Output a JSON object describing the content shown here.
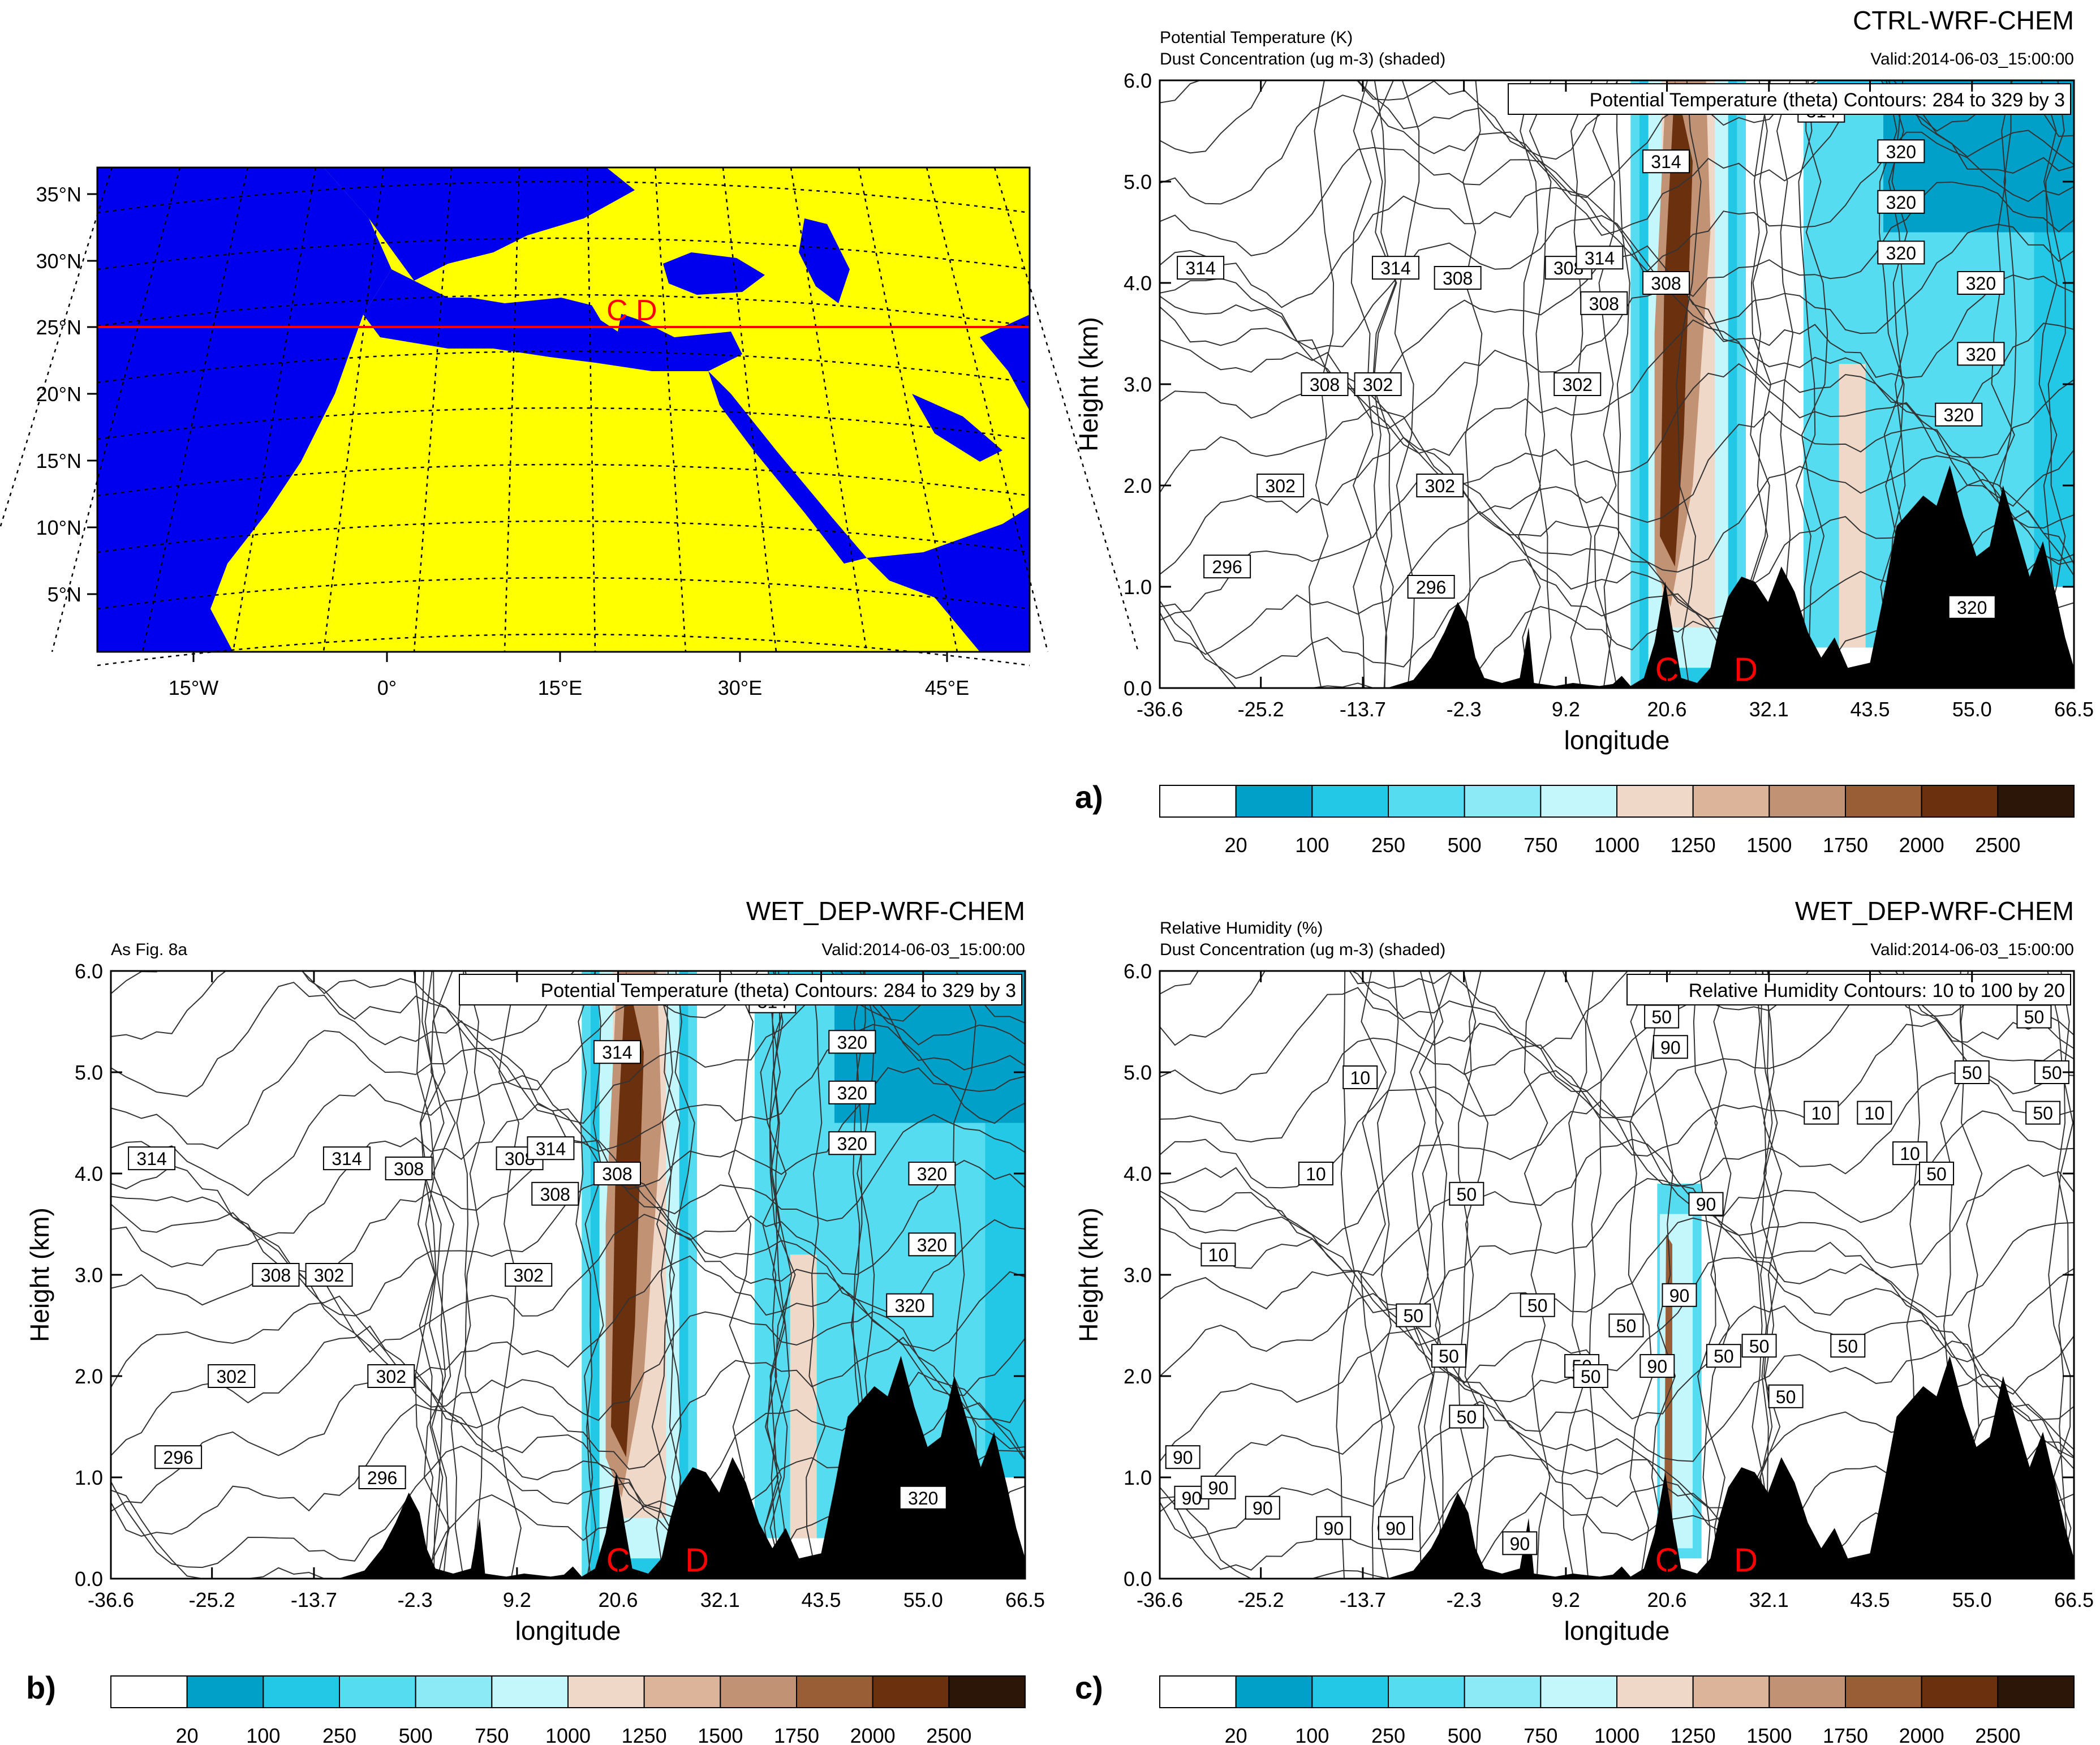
{
  "colors": {
    "land": "#ffff00",
    "sea": "#0000ee",
    "transect": "#ff0000",
    "marker": "#ff0000",
    "terrain": "#000000",
    "contour": "#333333"
  },
  "colorbar": {
    "colors": [
      "#ffffff",
      "#00a0c8",
      "#22c8e6",
      "#55dcf0",
      "#8ceaf6",
      "#c4f7fb",
      "#f0d8c8",
      "#dbb49a",
      "#c29275",
      "#9a5e36",
      "#6b300e",
      "#2c1608"
    ],
    "labels": [
      "20",
      "100",
      "250",
      "500",
      "750",
      "1000",
      "1250",
      "1500",
      "1750",
      "2000",
      "2500"
    ]
  },
  "markers": {
    "c": "C",
    "d": "D"
  },
  "map": {
    "lat_labels": [
      "35°N",
      "30°N",
      "25°N",
      "20°N",
      "15°N",
      "10°N",
      "5°N"
    ],
    "lon_labels": [
      "15°W",
      "0°",
      "15°E",
      "30°E",
      "45°E"
    ]
  },
  "panels": [
    {
      "letter": "a)",
      "model": "CTRL-WRF-CHEM",
      "header_left": [
        "Potential Temperature (K)",
        "Dust Concentration (ug m-3) (shaded)"
      ],
      "valid": "Valid:2014-06-03_15:00:00",
      "contour_info": "Potential Temperature (theta)   Contours: 284 to 329 by 3",
      "ylabel": "Height (km)",
      "xlabel": "longitude",
      "y_ticks": [
        "0.0",
        "1.0",
        "2.0",
        "3.0",
        "4.0",
        "5.0",
        "6.0"
      ],
      "x_ticks": [
        "-36.6",
        "-25.2",
        "-13.7",
        "-2.3",
        "9.2",
        "20.6",
        "32.1",
        "43.5",
        "55.0",
        "66.5"
      ],
      "contour_labels": [
        "314",
        "308",
        "302",
        "296",
        "314",
        "308",
        "302",
        "302",
        "296",
        "308",
        "302",
        "314",
        "308",
        "314",
        "308",
        "320",
        "320",
        "320",
        "320",
        "320",
        "320",
        "320",
        "314"
      ]
    },
    {
      "letter": "b)",
      "model": "WET_DEP-WRF-CHEM",
      "header_left": [
        "As Fig. 8a"
      ],
      "valid": "Valid:2014-06-03_15:00:00",
      "contour_info": "Potential Temperature (theta)   Contours: 284 to 329 by 3",
      "ylabel": "Height (km)",
      "xlabel": "longitude",
      "y_ticks": [
        "0.0",
        "1.0",
        "2.0",
        "3.0",
        "4.0",
        "5.0",
        "6.0"
      ],
      "x_ticks": [
        "-36.6",
        "-25.2",
        "-13.7",
        "-2.3",
        "9.2",
        "20.6",
        "32.1",
        "43.5",
        "55.0",
        "66.5"
      ],
      "contour_labels": [
        "314",
        "308",
        "302",
        "296",
        "314",
        "308",
        "302",
        "302",
        "296",
        "308",
        "302",
        "314",
        "308",
        "314",
        "308",
        "320",
        "320",
        "320",
        "320",
        "320",
        "320",
        "320",
        "314"
      ]
    },
    {
      "letter": "c)",
      "model": "WET_DEP-WRF-CHEM",
      "header_left": [
        "Relative Humidity (%)",
        "Dust Concentration (ug m-3) (shaded)"
      ],
      "valid": "Valid:2014-06-03_15:00:00",
      "contour_info": "Relative Humidity Contours: 10 to 100 by 20",
      "ylabel": "Height (km)",
      "xlabel": "longitude",
      "y_ticks": [
        "0.0",
        "1.0",
        "2.0",
        "3.0",
        "4.0",
        "5.0",
        "6.0"
      ],
      "x_ticks": [
        "-36.6",
        "-25.2",
        "-13.7",
        "-2.3",
        "9.2",
        "20.6",
        "32.1",
        "43.5",
        "55.0",
        "66.5"
      ],
      "contour_labels": [
        "10",
        "10",
        "10",
        "90",
        "90",
        "90",
        "90",
        "50",
        "50",
        "50",
        "50",
        "50",
        "50",
        "50",
        "50",
        "50",
        "90",
        "90",
        "90",
        "90",
        "50",
        "50",
        "50",
        "50",
        "10",
        "10",
        "10",
        "50",
        "50",
        "50",
        "50",
        "50",
        "90",
        "90",
        "90"
      ]
    }
  ],
  "chart_data": [
    {
      "type": "map",
      "projection": "Lambert conformal",
      "lat_ticks": [
        35,
        30,
        25,
        20,
        15,
        10,
        5
      ],
      "lon_ticks": [
        -15,
        0,
        15,
        30,
        45
      ],
      "transect_latitude": 25,
      "markers": [
        {
          "label": "C",
          "lon": 17
        },
        {
          "label": "D",
          "lon": 22
        }
      ]
    },
    {
      "type": "filled-contour",
      "panel": "a)",
      "title": "CTRL-WRF-CHEM",
      "xlabel": "longitude",
      "ylabel": "Height (km)",
      "xlim": [
        -36.6,
        66.5
      ],
      "ylim": [
        0,
        6
      ],
      "x_ticks": [
        -36.6,
        -25.2,
        -13.7,
        -2.3,
        9.2,
        20.6,
        32.1,
        43.5,
        55.0,
        66.5
      ],
      "y_ticks": [
        0,
        1,
        2,
        3,
        4,
        5,
        6
      ],
      "shaded_variable": "Dust Concentration (ug m-3)",
      "contour_variable": "Potential Temperature (K)",
      "contour_range": [
        284,
        329
      ],
      "contour_interval": 3,
      "colorbar_levels": [
        20,
        100,
        250,
        500,
        750,
        1000,
        1250,
        1500,
        1750,
        2000,
        2500
      ],
      "markers": [
        {
          "label": "C",
          "lon": 20.6
        },
        {
          "label": "D",
          "lon": 29.5
        }
      ]
    },
    {
      "type": "filled-contour",
      "panel": "b)",
      "title": "WET_DEP-WRF-CHEM",
      "xlabel": "longitude",
      "ylabel": "Height (km)",
      "xlim": [
        -36.6,
        66.5
      ],
      "ylim": [
        0,
        6
      ],
      "x_ticks": [
        -36.6,
        -25.2,
        -13.7,
        -2.3,
        9.2,
        20.6,
        32.1,
        43.5,
        55.0,
        66.5
      ],
      "y_ticks": [
        0,
        1,
        2,
        3,
        4,
        5,
        6
      ],
      "shaded_variable": "Dust Concentration (ug m-3)",
      "contour_variable": "Potential Temperature (K)",
      "contour_range": [
        284,
        329
      ],
      "contour_interval": 3,
      "colorbar_levels": [
        20,
        100,
        250,
        500,
        750,
        1000,
        1250,
        1500,
        1750,
        2000,
        2500
      ],
      "markers": [
        {
          "label": "C",
          "lon": 20.6
        },
        {
          "label": "D",
          "lon": 29.5
        }
      ]
    },
    {
      "type": "filled-contour",
      "panel": "c)",
      "title": "WET_DEP-WRF-CHEM",
      "xlabel": "longitude",
      "ylabel": "Height (km)",
      "xlim": [
        -36.6,
        66.5
      ],
      "ylim": [
        0,
        6
      ],
      "x_ticks": [
        -36.6,
        -25.2,
        -13.7,
        -2.3,
        9.2,
        20.6,
        32.1,
        43.5,
        55.0,
        66.5
      ],
      "y_ticks": [
        0,
        1,
        2,
        3,
        4,
        5,
        6
      ],
      "shaded_variable": "Dust Concentration (ug m-3)",
      "contour_variable": "Relative Humidity (%)",
      "contour_range": [
        10,
        100
      ],
      "contour_interval": 20,
      "colorbar_levels": [
        20,
        100,
        250,
        500,
        750,
        1000,
        1250,
        1500,
        1750,
        2000,
        2500
      ],
      "markers": [
        {
          "label": "C",
          "lon": 20.6
        },
        {
          "label": "D",
          "lon": 29.5
        }
      ]
    }
  ]
}
